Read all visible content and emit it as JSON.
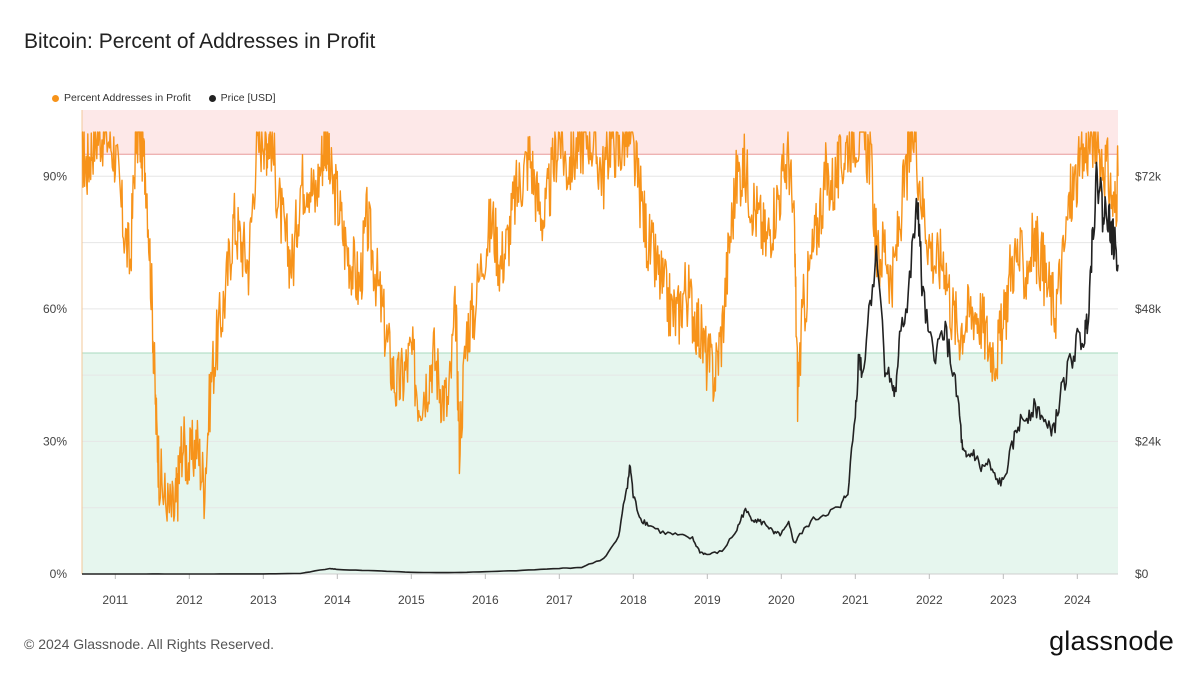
{
  "title": "Bitcoin: Percent of Addresses in Profit",
  "legend": [
    {
      "label": "Percent Addresses in Profit",
      "color": "#f7931a"
    },
    {
      "label": "Price [USD]",
      "color": "#222222"
    }
  ],
  "footer": "© 2024 Glassnode. All Rights Reserved.",
  "brand": "glassnode",
  "colors": {
    "profit_line": "#f7931a",
    "price_line": "#222222",
    "upper_zone": "#fde8e8",
    "upper_zone_line": "#e89a9a",
    "lower_zone": "#e6f6ee",
    "lower_zone_line": "#a8d9bf",
    "grid": "#e6e6e6"
  },
  "chart_data": {
    "type": "line",
    "title": "Bitcoin: Percent of Addresses in Profit",
    "x_range": [
      2010.55,
      2024.55
    ],
    "x_ticks": [
      {
        "value": 2011,
        "label": "2011"
      },
      {
        "value": 2012,
        "label": "2012"
      },
      {
        "value": 2013,
        "label": "2013"
      },
      {
        "value": 2014,
        "label": "2014"
      },
      {
        "value": 2015,
        "label": "2015"
      },
      {
        "value": 2016,
        "label": "2016"
      },
      {
        "value": 2017,
        "label": "2017"
      },
      {
        "value": 2018,
        "label": "2018"
      },
      {
        "value": 2019,
        "label": "2019"
      },
      {
        "value": 2020,
        "label": "2020"
      },
      {
        "value": 2021,
        "label": "2021"
      },
      {
        "value": 2022,
        "label": "2022"
      },
      {
        "value": 2023,
        "label": "2023"
      },
      {
        "value": 2024,
        "label": "2024"
      }
    ],
    "left_axis": {
      "name": "Percent Addresses in Profit",
      "ylim": [
        0,
        1.05
      ],
      "ticks": [
        {
          "value": 0,
          "label": "0%"
        },
        {
          "value": 0.3,
          "label": "30%"
        },
        {
          "value": 0.6,
          "label": "60%"
        },
        {
          "value": 0.9,
          "label": "90%"
        }
      ]
    },
    "right_axis": {
      "name": "Price [USD]",
      "ylim": [
        0,
        84000
      ],
      "ticks": [
        {
          "value": 0,
          "label": "$0"
        },
        {
          "value": 24000,
          "label": "$24k"
        },
        {
          "value": 48000,
          "label": "$48k"
        },
        {
          "value": 72000,
          "label": "$72k"
        }
      ]
    },
    "zones": [
      {
        "name": "upper",
        "from": 0.95,
        "to": 1.05
      },
      {
        "name": "lower",
        "from": 0.0,
        "to": 0.5
      }
    ],
    "extra_gridlines": [
      0.15,
      0.45,
      0.75
    ],
    "series": [
      {
        "name": "Percent Addresses in Profit",
        "axis": "left",
        "x": [
          2010.55,
          2010.62,
          2010.7,
          2010.8,
          2010.9,
          2011.0,
          2011.1,
          2011.2,
          2011.28,
          2011.35,
          2011.42,
          2011.5,
          2011.55,
          2011.6,
          2011.7,
          2011.8,
          2011.85,
          2011.9,
          2012.0,
          2012.1,
          2012.2,
          2012.3,
          2012.4,
          2012.5,
          2012.6,
          2012.7,
          2012.8,
          2012.9,
          2013.0,
          2013.05,
          2013.1,
          2013.2,
          2013.3,
          2013.4,
          2013.5,
          2013.6,
          2013.7,
          2013.8,
          2013.85,
          2013.9,
          2014.0,
          2014.1,
          2014.2,
          2014.3,
          2014.4,
          2014.5,
          2014.6,
          2014.7,
          2014.8,
          2014.9,
          2015.0,
          2015.1,
          2015.2,
          2015.3,
          2015.4,
          2015.5,
          2015.6,
          2015.65,
          2015.75,
          2015.85,
          2016.0,
          2016.1,
          2016.2,
          2016.3,
          2016.4,
          2016.5,
          2016.6,
          2016.7,
          2016.8,
          2016.9,
          2017.0,
          2017.1,
          2017.2,
          2017.3,
          2017.4,
          2017.5,
          2017.6,
          2017.7,
          2017.8,
          2017.9,
          2018.0,
          2018.1,
          2018.2,
          2018.3,
          2018.4,
          2018.5,
          2018.6,
          2018.7,
          2018.8,
          2018.9,
          2019.0,
          2019.1,
          2019.2,
          2019.3,
          2019.4,
          2019.5,
          2019.6,
          2019.7,
          2019.8,
          2019.9,
          2020.0,
          2020.1,
          2020.18,
          2020.22,
          2020.3,
          2020.4,
          2020.5,
          2020.6,
          2020.7,
          2020.8,
          2020.9,
          2021.0,
          2021.1,
          2021.2,
          2021.3,
          2021.4,
          2021.5,
          2021.6,
          2021.7,
          2021.8,
          2021.9,
          2022.0,
          2022.1,
          2022.2,
          2022.3,
          2022.4,
          2022.5,
          2022.6,
          2022.7,
          2022.8,
          2022.9,
          2023.0,
          2023.1,
          2023.2,
          2023.3,
          2023.4,
          2023.5,
          2023.6,
          2023.7,
          2023.8,
          2023.9,
          2024.0,
          2024.1,
          2024.2,
          2024.3,
          2024.4,
          2024.5,
          2024.55
        ],
        "values": [
          0.95,
          0.92,
          0.98,
          1.0,
          0.99,
          0.95,
          0.8,
          0.7,
          1.0,
          0.98,
          0.9,
          0.6,
          0.35,
          0.22,
          0.15,
          0.14,
          0.2,
          0.3,
          0.25,
          0.3,
          0.2,
          0.45,
          0.55,
          0.65,
          0.8,
          0.75,
          0.7,
          0.95,
          1.0,
          0.98,
          1.0,
          0.85,
          0.75,
          0.7,
          0.88,
          0.9,
          0.85,
          0.95,
          1.0,
          0.9,
          0.85,
          0.75,
          0.7,
          0.65,
          0.8,
          0.7,
          0.6,
          0.5,
          0.42,
          0.45,
          0.5,
          0.4,
          0.43,
          0.5,
          0.42,
          0.38,
          0.6,
          0.3,
          0.55,
          0.6,
          0.75,
          0.8,
          0.7,
          0.75,
          0.85,
          0.9,
          0.95,
          0.85,
          0.8,
          0.9,
          1.0,
          0.92,
          0.95,
          0.98,
          1.0,
          0.95,
          0.9,
          1.0,
          0.95,
          1.0,
          0.95,
          0.85,
          0.75,
          0.7,
          0.65,
          0.6,
          0.58,
          0.65,
          0.6,
          0.55,
          0.48,
          0.45,
          0.55,
          0.75,
          0.9,
          0.92,
          0.85,
          0.8,
          0.75,
          0.82,
          0.88,
          0.95,
          0.75,
          0.42,
          0.6,
          0.7,
          0.8,
          0.9,
          0.88,
          0.92,
          0.98,
          1.0,
          0.98,
          0.95,
          0.7,
          0.75,
          0.65,
          0.8,
          0.92,
          1.0,
          0.85,
          0.75,
          0.7,
          0.72,
          0.6,
          0.55,
          0.58,
          0.6,
          0.58,
          0.52,
          0.5,
          0.55,
          0.7,
          0.72,
          0.68,
          0.75,
          0.72,
          0.65,
          0.6,
          0.7,
          0.85,
          0.9,
          0.95,
          1.0,
          0.95,
          0.92,
          0.82,
          0.9
        ]
      },
      {
        "name": "Price [USD]",
        "axis": "right",
        "x": [
          2010.55,
          2011.0,
          2011.5,
          2012.0,
          2012.5,
          2013.0,
          2013.5,
          2013.9,
          2014.0,
          2014.5,
          2015.0,
          2015.5,
          2016.0,
          2016.5,
          2017.0,
          2017.3,
          2017.6,
          2017.8,
          2017.9,
          2017.96,
          2018.0,
          2018.1,
          2018.2,
          2018.4,
          2018.6,
          2018.8,
          2018.9,
          2019.0,
          2019.2,
          2019.4,
          2019.5,
          2019.6,
          2019.7,
          2019.8,
          2019.9,
          2020.0,
          2020.1,
          2020.18,
          2020.22,
          2020.4,
          2020.6,
          2020.8,
          2020.9,
          2021.0,
          2021.05,
          2021.1,
          2021.2,
          2021.3,
          2021.4,
          2021.5,
          2021.55,
          2021.6,
          2021.7,
          2021.8,
          2021.85,
          2021.9,
          2022.0,
          2022.1,
          2022.2,
          2022.3,
          2022.4,
          2022.45,
          2022.5,
          2022.6,
          2022.7,
          2022.8,
          2022.9,
          2023.0,
          2023.1,
          2023.2,
          2023.3,
          2023.4,
          2023.5,
          2023.6,
          2023.7,
          2023.8,
          2023.9,
          2024.0,
          2024.1,
          2024.15,
          2024.2,
          2024.25,
          2024.3,
          2024.35,
          2024.4,
          2024.45,
          2024.5,
          2024.55
        ],
        "values": [
          0,
          0,
          10,
          5,
          10,
          15,
          100,
          1000,
          800,
          600,
          300,
          250,
          400,
          650,
          1000,
          1200,
          2800,
          6500,
          15000,
          19500,
          14000,
          10000,
          9000,
          7500,
          7000,
          6400,
          4000,
          3500,
          4100,
          8000,
          11500,
          10200,
          9500,
          9000,
          7300,
          7200,
          9000,
          5500,
          6500,
          9500,
          11000,
          12000,
          15000,
          29000,
          40000,
          36000,
          50000,
          58000,
          38000,
          34000,
          32000,
          45000,
          48000,
          62000,
          67000,
          52000,
          42000,
          40000,
          45000,
          38000,
          30000,
          22000,
          21000,
          22000,
          19000,
          20000,
          17000,
          16500,
          22000,
          27000,
          28500,
          30000,
          29500,
          26000,
          27000,
          34000,
          38000,
          42000,
          43000,
          48000,
          60000,
          70000,
          72000,
          64000,
          67000,
          62000,
          60000,
          56000
        ]
      }
    ]
  }
}
